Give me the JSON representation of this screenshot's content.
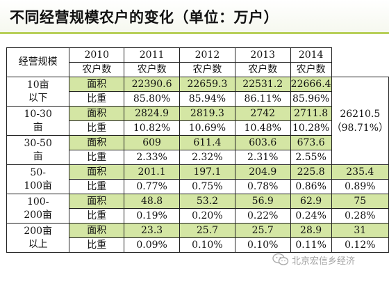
{
  "title": "不同经营规模农户的变化（单位：万户）",
  "table": {
    "corner_label": "经营规模",
    "years": [
      "2010",
      "2011",
      "2012",
      "2013",
      "2014"
    ],
    "subheaders": [
      "农户数",
      "农户数",
      "农户数",
      "农户数",
      "农户数"
    ],
    "groups": [
      {
        "category": "10亩以下",
        "rows": [
          {
            "metric": "面积",
            "values": [
              "22390.6",
              "22659.3",
              "22531.2",
              "22666.4"
            ]
          },
          {
            "metric": "比重",
            "values": [
              "85.80%",
              "85.94%",
              "86.11%",
              "85.96%"
            ]
          }
        ]
      },
      {
        "category": "10-30亩",
        "rows": [
          {
            "metric": "面积",
            "values": [
              "2824.9",
              "2819.3",
              "2742",
              "2711.8"
            ]
          },
          {
            "metric": "比重",
            "values": [
              "10.82%",
              "10.69%",
              "10.48%",
              "10.28%"
            ]
          }
        ]
      },
      {
        "category": "30-50亩",
        "rows": [
          {
            "metric": "面积",
            "values": [
              "609",
              "611.4",
              "603.6",
              "673.6"
            ]
          },
          {
            "metric": "比重",
            "values": [
              "2.33%",
              "2.32%",
              "2.31%",
              "2.55%"
            ]
          }
        ]
      },
      {
        "category": "50-100亩",
        "rows": [
          {
            "metric": "面积",
            "values": [
              "201.1",
              "197.1",
              "204.9",
              "225.8",
              "235.4"
            ]
          },
          {
            "metric": "比重",
            "values": [
              "0.77%",
              "0.75%",
              "0.78%",
              "0.86%",
              "0.89%"
            ]
          }
        ]
      },
      {
        "category": "100-200亩",
        "rows": [
          {
            "metric": "面积",
            "values": [
              "48.8",
              "53.2",
              "56.9",
              "62.9",
              "75"
            ]
          },
          {
            "metric": "比重",
            "values": [
              "0.19%",
              "0.20%",
              "0.22%",
              "0.24%",
              "0.28%"
            ]
          }
        ]
      },
      {
        "category": "200亩以上",
        "rows": [
          {
            "metric": "面积",
            "values": [
              "23.3",
              "25.7",
              "25.7",
              "28.9",
              "31"
            ]
          },
          {
            "metric": "比重",
            "values": [
              "0.09%",
              "0.10%",
              "0.10%",
              "0.11%",
              "0.12%"
            ]
          }
        ]
      }
    ],
    "merged_2014": {
      "value": "26210.5",
      "share": "（98.71%）"
    }
  },
  "watermark": {
    "icon": "wechat-icon",
    "text": "北京宏信乡经济"
  },
  "colors": {
    "row_green": "#d4e6a4",
    "title_rule": "#b8cf5a"
  }
}
